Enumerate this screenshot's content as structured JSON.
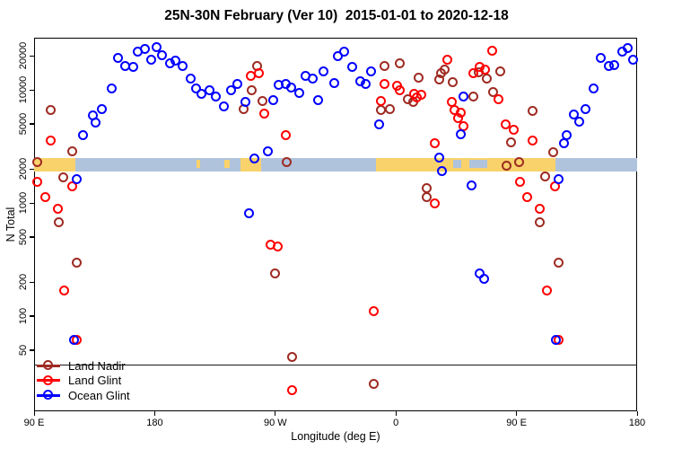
{
  "title": "25N-30N February (Ver 10)  2015-01-01 to 2020-12-18",
  "chart_data": {
    "type": "scatter",
    "xlabel": "Longitude (deg E)",
    "ylabel": "N Total",
    "x_axis": {
      "min_deg_e": 90,
      "max_deg_e": 540,
      "ticks": [
        {
          "deg_e": 90,
          "label": "90 E"
        },
        {
          "deg_e": 180,
          "label": "180"
        },
        {
          "deg_e": 270,
          "label": "90 W"
        },
        {
          "deg_e": 360,
          "label": "0"
        },
        {
          "deg_e": 450,
          "label": "90 E"
        },
        {
          "deg_e": 540,
          "label": "180"
        }
      ]
    },
    "y_axis": {
      "scale": "log10",
      "n_min": 14.4,
      "n_max": 28900,
      "ticks": [
        20000,
        10000,
        5000,
        2000,
        1000,
        500,
        200,
        100,
        50
      ]
    },
    "threshold_line_n": 37,
    "map_strip": {
      "n_top": 2500,
      "n_bottom": 1950,
      "ocean_color": "#afc3dd",
      "land_color": "#f9d26c",
      "segments": [
        {
          "from": 90,
          "to": 121,
          "type": "land"
        },
        {
          "from": 121,
          "to": 244,
          "type": "ocean"
        },
        {
          "from": 244,
          "to": 259.5,
          "type": "land"
        },
        {
          "from": 259.5,
          "to": 345,
          "type": "ocean"
        },
        {
          "from": 345,
          "to": 479,
          "type": "land"
        },
        {
          "from": 479,
          "to": 540,
          "type": "ocean"
        },
        {
          "from": 403,
          "to": 409,
          "type": "ocean",
          "partial": true
        },
        {
          "from": 415,
          "to": 428,
          "type": "ocean",
          "partial": true
        },
        {
          "from": 232,
          "to": 236,
          "type": "land",
          "partial": true
        },
        {
          "from": 211,
          "to": 214,
          "type": "land",
          "partial": true
        }
      ]
    },
    "series": [
      {
        "name": "Land Nadir",
        "color": "#9e2b22",
        "marker": "open-circle",
        "points": [
          [
            103,
            6560
          ],
          [
            119,
            2830
          ],
          [
            93,
            2260
          ],
          [
            112,
            1670
          ],
          [
            109,
            668
          ],
          [
            122,
            294
          ],
          [
            257,
            16100
          ],
          [
            253,
            9900
          ],
          [
            247,
            6680
          ],
          [
            261,
            7900
          ],
          [
            279,
            2280
          ],
          [
            270,
            234
          ],
          [
            283,
            43
          ],
          [
            344,
            25
          ],
          [
            383,
            1340
          ],
          [
            383,
            1120
          ],
          [
            349,
            6530
          ],
          [
            356,
            6680
          ],
          [
            352,
            16100
          ],
          [
            363,
            17000
          ],
          [
            369,
            8180
          ],
          [
            373,
            7750
          ],
          [
            377,
            12700
          ],
          [
            394,
            13900
          ],
          [
            397,
            14900
          ],
          [
            393,
            12200
          ],
          [
            403,
            11600
          ],
          [
            422,
            14200
          ],
          [
            428,
            12500
          ],
          [
            438,
            14400
          ],
          [
            433,
            9460
          ],
          [
            418,
            8650
          ],
          [
            462,
            6460
          ],
          [
            446,
            3400
          ],
          [
            478,
            2790
          ],
          [
            472,
            1700
          ],
          [
            482,
            294
          ],
          [
            443,
            2130
          ],
          [
            452,
            2260
          ],
          [
            468,
            668
          ]
        ]
      },
      {
        "name": "Land Glint",
        "color": "#ff0000",
        "marker": "open-circle",
        "points": [
          [
            103,
            3530
          ],
          [
            93,
            1520
          ],
          [
            119,
            1400
          ],
          [
            99,
            1120
          ],
          [
            108,
            880
          ],
          [
            113,
            167
          ],
          [
            122,
            61
          ],
          [
            252,
            13200
          ],
          [
            258,
            13900
          ],
          [
            262,
            6110
          ],
          [
            278,
            3970
          ],
          [
            267,
            424
          ],
          [
            272,
            409
          ],
          [
            283,
            22
          ],
          [
            344,
            110
          ],
          [
            349,
            7900
          ],
          [
            352,
            11200
          ],
          [
            361,
            10800
          ],
          [
            363,
            9900
          ],
          [
            374,
            9200
          ],
          [
            376,
            8490
          ],
          [
            379,
            8940
          ],
          [
            389,
            3340
          ],
          [
            389,
            975
          ],
          [
            399,
            18300
          ],
          [
            432,
            21800
          ],
          [
            418,
            13900
          ],
          [
            423,
            15900
          ],
          [
            427,
            15000
          ],
          [
            402,
            7750
          ],
          [
            404,
            6600
          ],
          [
            409,
            6200
          ],
          [
            407,
            5560
          ],
          [
            411,
            4730
          ],
          [
            437,
            8170
          ],
          [
            442,
            4900
          ],
          [
            448,
            4400
          ],
          [
            462,
            3530
          ],
          [
            453,
            1520
          ],
          [
            458,
            1120
          ],
          [
            468,
            875
          ],
          [
            473,
            167
          ],
          [
            479,
            1400
          ],
          [
            482,
            61
          ]
        ]
      },
      {
        "name": "Ocean Glint",
        "color": "#0000ff",
        "marker": "open-circle",
        "points": [
          [
            127,
            3940
          ],
          [
            134,
            5890
          ],
          [
            136,
            5120
          ],
          [
            141,
            6680
          ],
          [
            148,
            10200
          ],
          [
            153,
            18900
          ],
          [
            158,
            16100
          ],
          [
            164,
            15900
          ],
          [
            168,
            21500
          ],
          [
            173,
            22700
          ],
          [
            178,
            18300
          ],
          [
            182,
            23600
          ],
          [
            186,
            20000
          ],
          [
            192,
            17000
          ],
          [
            196,
            17900
          ],
          [
            201,
            16100
          ],
          [
            207,
            12500
          ],
          [
            211,
            10200
          ],
          [
            215,
            9200
          ],
          [
            221,
            9900
          ],
          [
            226,
            8650
          ],
          [
            232,
            7060
          ],
          [
            237,
            9900
          ],
          [
            242,
            11200
          ],
          [
            248,
            7750
          ],
          [
            251,
            803
          ],
          [
            265,
            2830
          ],
          [
            255,
            2470
          ],
          [
            122,
            1610
          ],
          [
            120,
            61
          ],
          [
            269,
            8040
          ],
          [
            273,
            11000
          ],
          [
            278,
            11200
          ],
          [
            282,
            10400
          ],
          [
            288,
            9290
          ],
          [
            293,
            13200
          ],
          [
            298,
            12500
          ],
          [
            306,
            14400
          ],
          [
            314,
            11400
          ],
          [
            302,
            8040
          ],
          [
            317,
            19700
          ],
          [
            322,
            21500
          ],
          [
            328,
            15900
          ],
          [
            334,
            11800
          ],
          [
            338,
            11200
          ],
          [
            342,
            14400
          ],
          [
            348,
            4900
          ],
          [
            393,
            2500
          ],
          [
            395,
            1900
          ],
          [
            411,
            8650
          ],
          [
            409,
            4010
          ],
          [
            417,
            1420
          ],
          [
            423,
            236
          ],
          [
            426,
            211
          ],
          [
            482,
            1610
          ],
          [
            486,
            3340
          ],
          [
            488,
            3970
          ],
          [
            493,
            5990
          ],
          [
            497,
            5180
          ],
          [
            502,
            6680
          ],
          [
            508,
            10200
          ],
          [
            513,
            18900
          ],
          [
            519,
            16100
          ],
          [
            523,
            16400
          ],
          [
            529,
            21500
          ],
          [
            533,
            23200
          ],
          [
            537,
            18300
          ],
          [
            480,
            61
          ]
        ]
      }
    ]
  },
  "legend": {
    "items": [
      {
        "label": "Land Nadir",
        "color": "#9e2b22"
      },
      {
        "label": "Land Glint",
        "color": "#ff0000"
      },
      {
        "label": "Ocean Glint",
        "color": "#0000ff"
      }
    ]
  }
}
